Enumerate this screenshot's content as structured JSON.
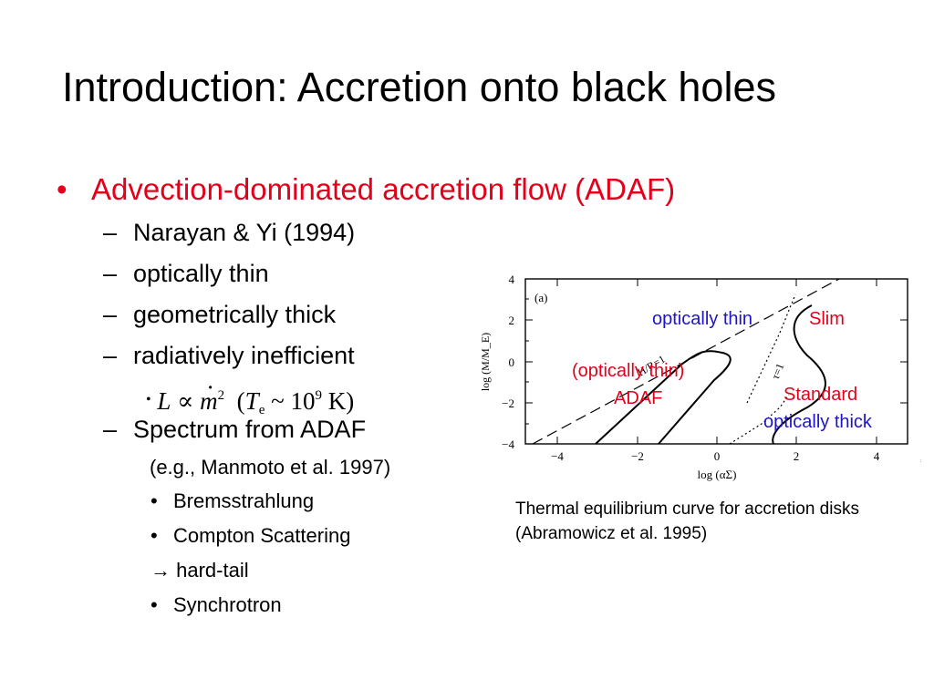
{
  "slide": {
    "title": "Introduction: Accretion onto black holes",
    "bullet_marker": "•",
    "dash_marker": "–",
    "heading": "Advection-dominated accretion flow (ADAF)",
    "points": [
      "Narayan & Yi (1994)",
      "optically thin",
      "geometrically thick",
      "radiatively inefficient"
    ],
    "formula": {
      "lhs": "L",
      "prop": "∝",
      "mdot": "m",
      "exp": "2",
      "open": "(",
      "T": "T",
      "sub": "e",
      "sim": "~",
      "base": "10",
      "pow": "9",
      "unit": "K",
      "close": ")"
    },
    "spectrum": "Spectrum from ADAF",
    "reference": "(e.g., Manmoto et al. 1997)",
    "mechanisms": [
      "Bremsstrahlung",
      "Compton Scattering",
      "→ hard-tail",
      "Synchrotron"
    ]
  },
  "figure": {
    "panel_label": "(a)",
    "xlabel": "log (αΣ)",
    "ylabel": "log (M/M_E)",
    "xticks": [
      "−4",
      "−2",
      "0",
      "2",
      "4"
    ],
    "yticks": [
      "4",
      "2",
      "0",
      "−2",
      "−4"
    ],
    "xlim": [
      -5,
      5
    ],
    "ylim": [
      -4,
      4
    ],
    "line_labels": {
      "hr": "H/R=1",
      "tau": "τ=1"
    },
    "annotations": {
      "opt_thin": "optically thin",
      "slim": "Slim",
      "adaf1": "(optically thin)",
      "adaf2": "ADAF",
      "standard": "Standard",
      "opt_thick": "optically thick"
    },
    "colors": {
      "red": "#e3001b",
      "blue": "#1e14c8"
    },
    "caption_lines": [
      "Thermal equilibrium curve for accretion disks",
      "(Abramowicz et al. 1995)"
    ]
  }
}
